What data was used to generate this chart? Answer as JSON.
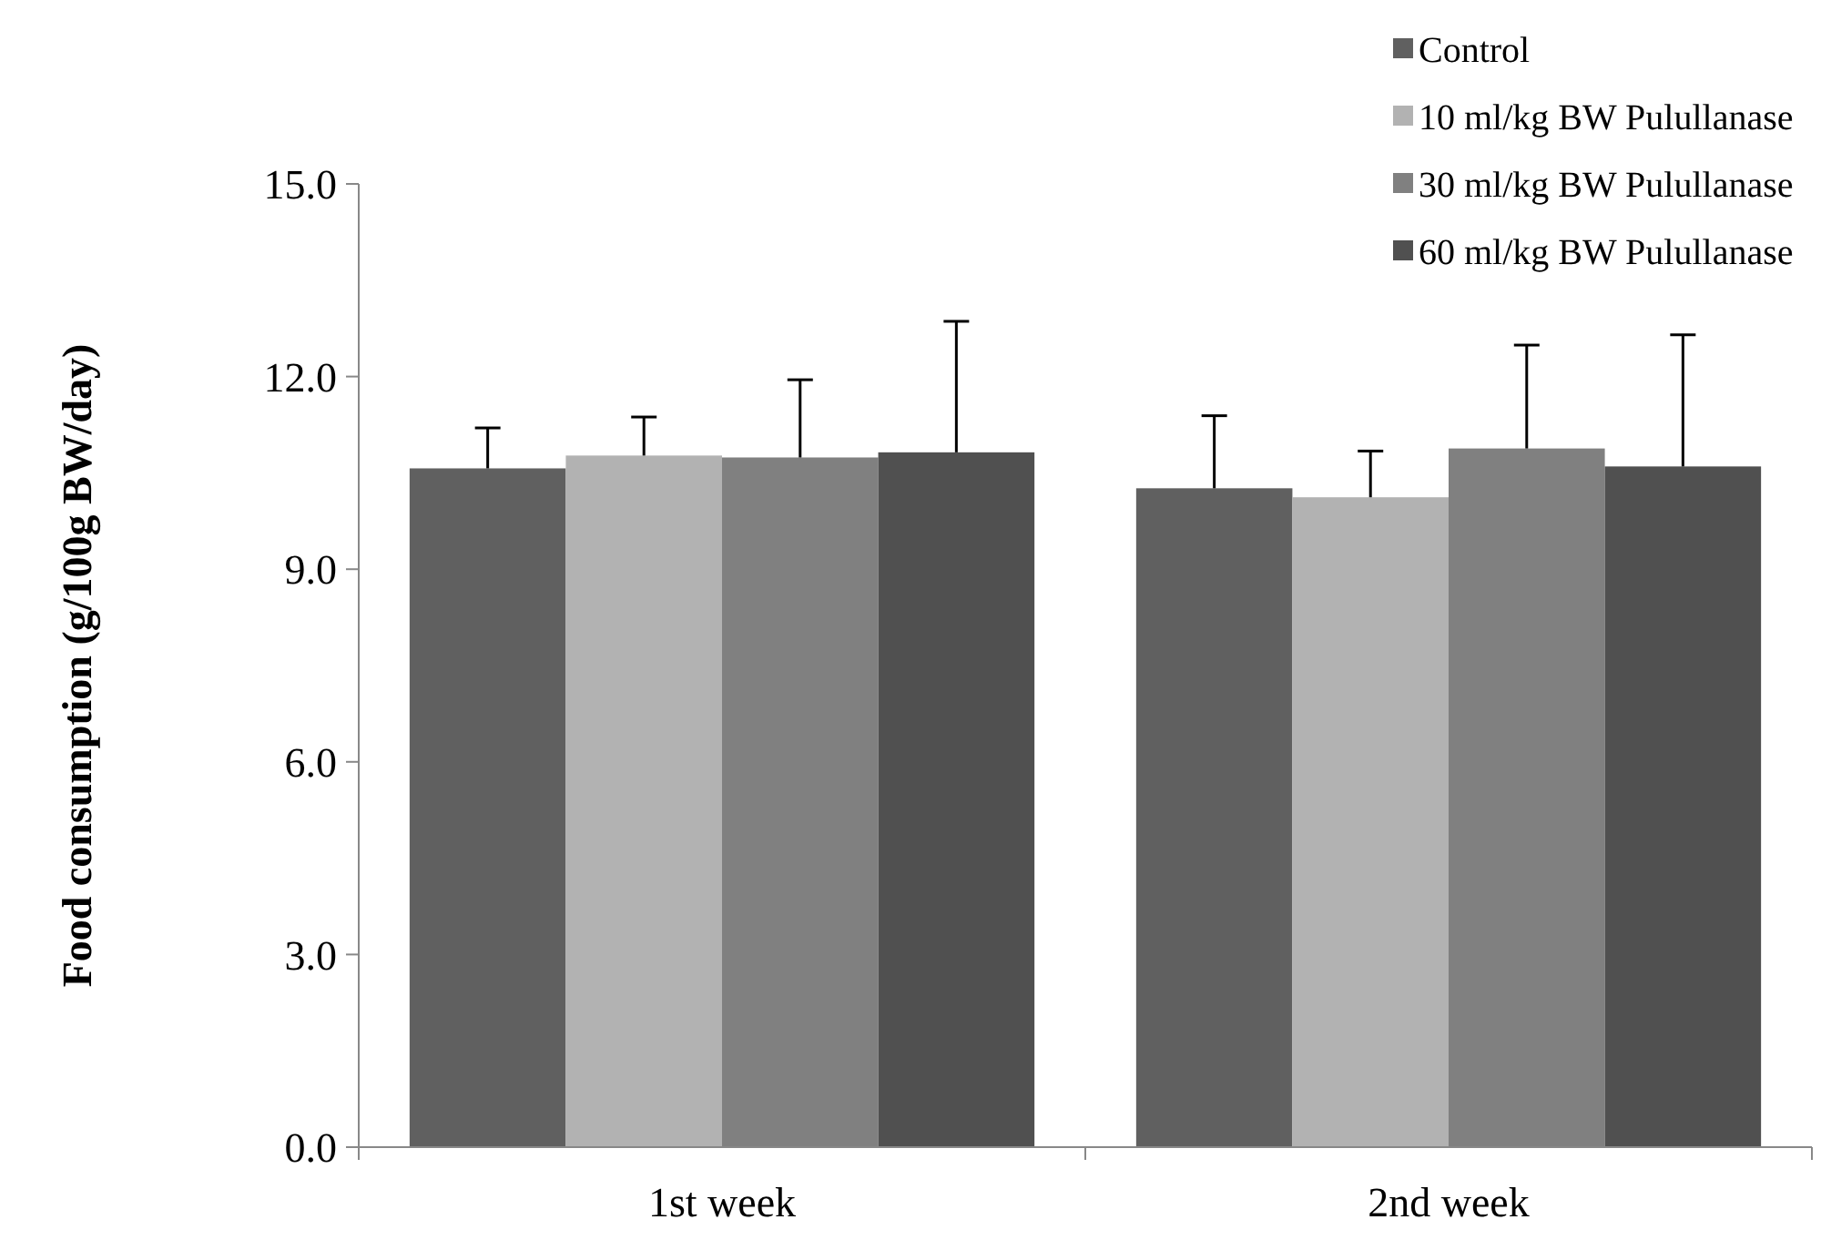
{
  "chart_data": {
    "type": "bar",
    "ylabel": "Food consumption (g/100g BW/day)",
    "categories": [
      "1st week",
      "2nd week"
    ],
    "series": [
      {
        "name": "Control",
        "color": "#606060",
        "values": [
          10.57,
          10.26
        ],
        "errors": [
          [
            10.57,
            11.2
          ],
          [
            10.26,
            11.39
          ]
        ]
      },
      {
        "name": "10 ml/kg BW Pulullanase",
        "color": "#b2b2b2",
        "values": [
          10.77,
          10.12
        ],
        "errors": [
          [
            10.77,
            11.37
          ],
          [
            10.12,
            10.84
          ]
        ]
      },
      {
        "name": "30 ml/kg BW Pulullanase",
        "color": "#808080",
        "values": [
          10.74,
          10.88
        ],
        "errors": [
          [
            10.74,
            11.95
          ],
          [
            10.88,
            12.49
          ]
        ]
      },
      {
        "name": "60 ml/kg BW Pulullanase",
        "color": "#505050",
        "values": [
          10.82,
          10.6
        ],
        "errors": [
          [
            10.82,
            12.86
          ],
          [
            10.6,
            12.65
          ]
        ]
      }
    ],
    "ylim": [
      0,
      15
    ],
    "yticks": [
      {
        "value": 0,
        "label": "0.0"
      },
      {
        "value": 3,
        "label": "3.0"
      },
      {
        "value": 6,
        "label": "6.0"
      },
      {
        "value": 9,
        "label": "9.0"
      },
      {
        "value": 12,
        "label": "12.0"
      },
      {
        "value": 15,
        "label": "15.0"
      }
    ],
    "grid": false,
    "legend": "top"
  }
}
